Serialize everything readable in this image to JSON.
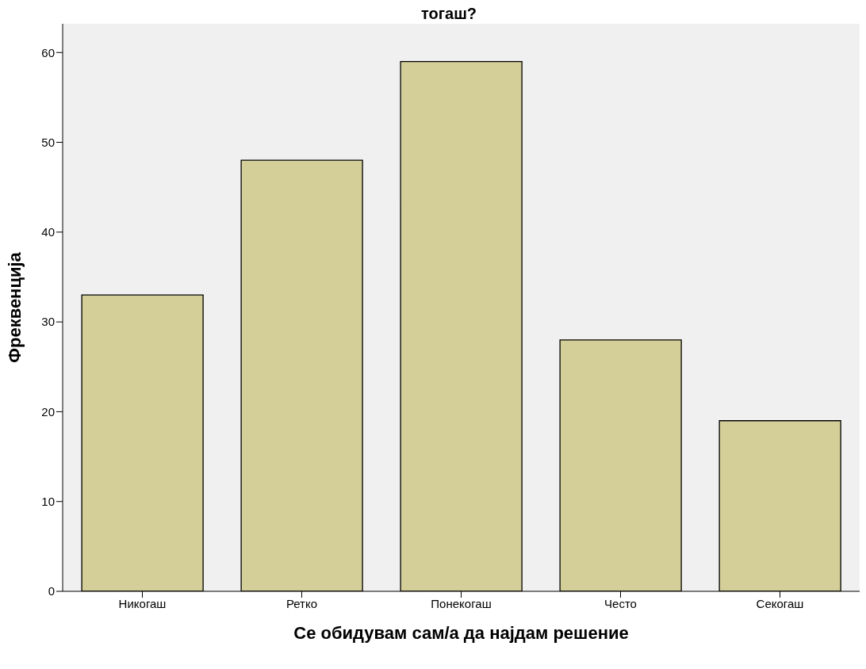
{
  "chart_data": {
    "type": "bar",
    "title": "тогаш?",
    "xlabel": "Се обидувам сам/а да најдам решение",
    "ylabel": "Фреквенција",
    "categories": [
      "Никогаш",
      "Ретко",
      "Понекогаш",
      "Често",
      "Секогаш"
    ],
    "values": [
      33,
      48,
      59,
      28,
      19
    ],
    "color": "#d4cf98",
    "ylim": [
      0,
      63.2
    ],
    "yticks": [
      0,
      10,
      20,
      30,
      40,
      50,
      60
    ],
    "grid": false
  }
}
